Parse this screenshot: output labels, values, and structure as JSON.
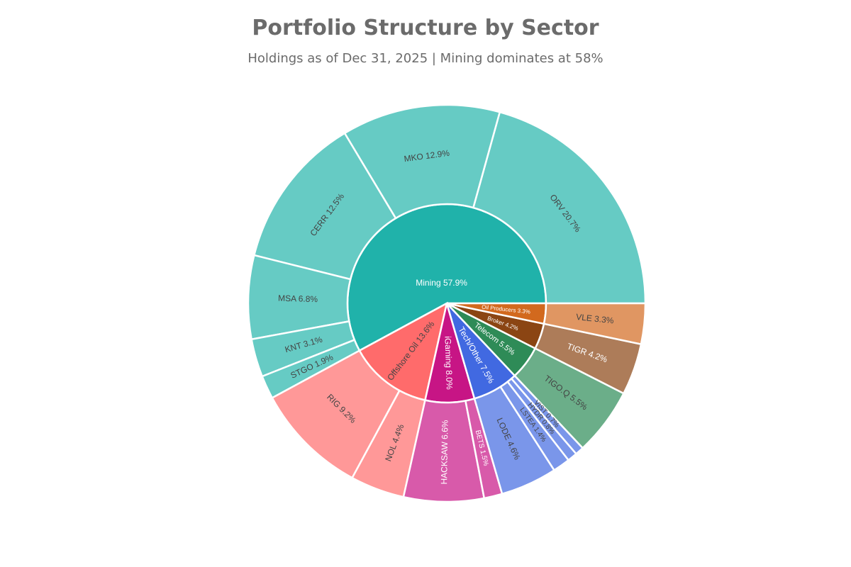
{
  "chart_data": {
    "type": "sunburst",
    "title": "Portfolio Structure by Sector",
    "subtitle": "Holdings as of Dec 31, 2025 | Mining dominates at 58%",
    "sectors": [
      {
        "name": "Mining",
        "pct": 57.9,
        "label": "Mining 57.9%",
        "color": "#20b2aa",
        "children": [
          {
            "name": "ORV",
            "pct": 20.7,
            "label": "ORV 20.7%",
            "color": "#66cbc4"
          },
          {
            "name": "MKO",
            "pct": 12.9,
            "label": "MKO 12.9%",
            "color": "#66cbc4"
          },
          {
            "name": "CERR",
            "pct": 12.5,
            "label": "CERR 12.5%",
            "color": "#66cbc4"
          },
          {
            "name": "MSA",
            "pct": 6.8,
            "label": "MSA 6.8%",
            "color": "#66cbc4"
          },
          {
            "name": "KNT",
            "pct": 3.1,
            "label": "KNT 3.1%",
            "color": "#66cbc4"
          },
          {
            "name": "STGO",
            "pct": 1.9,
            "label": "STGO 1.9%",
            "color": "#66cbc4"
          }
        ]
      },
      {
        "name": "Offshore Oil",
        "pct": 13.6,
        "label": "Offshore Oil 13.6%",
        "color": "#ff6b6b",
        "children": [
          {
            "name": "RIG",
            "pct": 9.2,
            "label": "RIG 9.2%",
            "color": "#ff9898"
          },
          {
            "name": "NOL",
            "pct": 4.4,
            "label": "NOL 4.4%",
            "color": "#ff9898"
          }
        ]
      },
      {
        "name": "iGaming",
        "pct": 8.0,
        "label": "iGaming 8.0%",
        "color": "#c71585",
        "children": [
          {
            "name": "HACKSAW",
            "pct": 6.6,
            "label": "HACKSAW 6.6%",
            "color": "#d85aaa"
          },
          {
            "name": "BETS",
            "pct": 1.5,
            "label": "BETS 1.5%",
            "color": "#d85aaa"
          }
        ]
      },
      {
        "name": "Tech/Other",
        "pct": 7.5,
        "label": "Tech/Other 7.5%",
        "color": "#4169e1",
        "children": [
          {
            "name": "LODE",
            "pct": 4.6,
            "label": "LODE 4.6%",
            "color": "#7a96ea"
          },
          {
            "name": "LSTEA",
            "pct": 1.4,
            "label": "LSTEA 1.4%",
            "color": "#7a96ea"
          },
          {
            "name": "HYDR",
            "pct": 0.8,
            "label": "HYDR 0.8%",
            "color": "#7a96ea"
          },
          {
            "name": "VIST",
            "pct": 0.7,
            "label": "VIST 0.7%",
            "color": "#7a96ea"
          }
        ]
      },
      {
        "name": "Telecom",
        "pct": 5.5,
        "label": "Telecom 5.5%",
        "color": "#2e8b57",
        "children": [
          {
            "name": "TIGO.Q",
            "pct": 5.5,
            "label": "TIGO.Q 5.5%",
            "color": "#6bae89"
          }
        ]
      },
      {
        "name": "Broker",
        "pct": 4.2,
        "label": "Broker 4.2%",
        "color": "#8b4513",
        "children": [
          {
            "name": "TIGR",
            "pct": 4.2,
            "label": "TIGR 4.2%",
            "color": "#ad7c59"
          }
        ]
      },
      {
        "name": "Oil Producers",
        "pct": 3.3,
        "label": "Oil Producers 3.3%",
        "color": "#d2691e",
        "children": [
          {
            "name": "VLE",
            "pct": 3.3,
            "label": "VLE 3.3%",
            "color": "#e09662"
          }
        ]
      }
    ]
  }
}
